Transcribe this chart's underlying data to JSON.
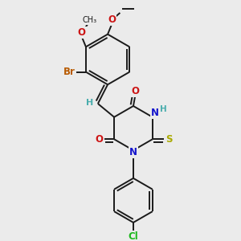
{
  "bg_color": "#ebebeb",
  "bond_color": "#1a1a1a",
  "bond_width": 1.4,
  "atom_colors": {
    "C": "#1a1a1a",
    "H": "#4aadad",
    "N": "#1414cc",
    "O": "#cc1414",
    "S": "#aaaa00",
    "Br": "#b85a00",
    "Cl": "#1db81d"
  },
  "font_size": 8.5
}
